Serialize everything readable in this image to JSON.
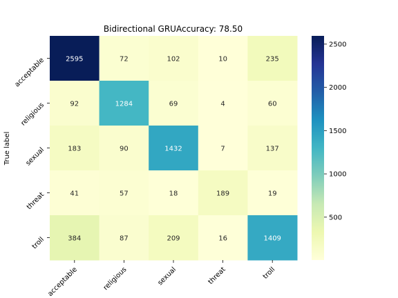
{
  "chart_data": {
    "type": "heatmap",
    "title": "Bidirectional GRUAccuracy: 78.50",
    "ylabel": "True label",
    "xlabel": "",
    "x_categories": [
      "acceptable",
      "religious",
      "sexual",
      "threat",
      "troll"
    ],
    "y_categories": [
      "acceptable",
      "religious",
      "sexual",
      "threat",
      "troll"
    ],
    "values": [
      [
        2595,
        72,
        102,
        10,
        235
      ],
      [
        92,
        1284,
        69,
        4,
        60
      ],
      [
        183,
        90,
        1432,
        7,
        137
      ],
      [
        41,
        57,
        18,
        189,
        19
      ],
      [
        384,
        87,
        209,
        16,
        1409
      ]
    ],
    "value_range": [
      4,
      2595
    ],
    "colormap": "YlGnBu",
    "colorbar_ticks": [
      500,
      1000,
      1500,
      2000,
      2500
    ],
    "colorbar_tick_labels": [
      "500",
      "1000",
      "1500",
      "2000",
      "2500"
    ],
    "annot_light_text_color": "#ffffff",
    "annot_dark_text_color": "#262626"
  }
}
